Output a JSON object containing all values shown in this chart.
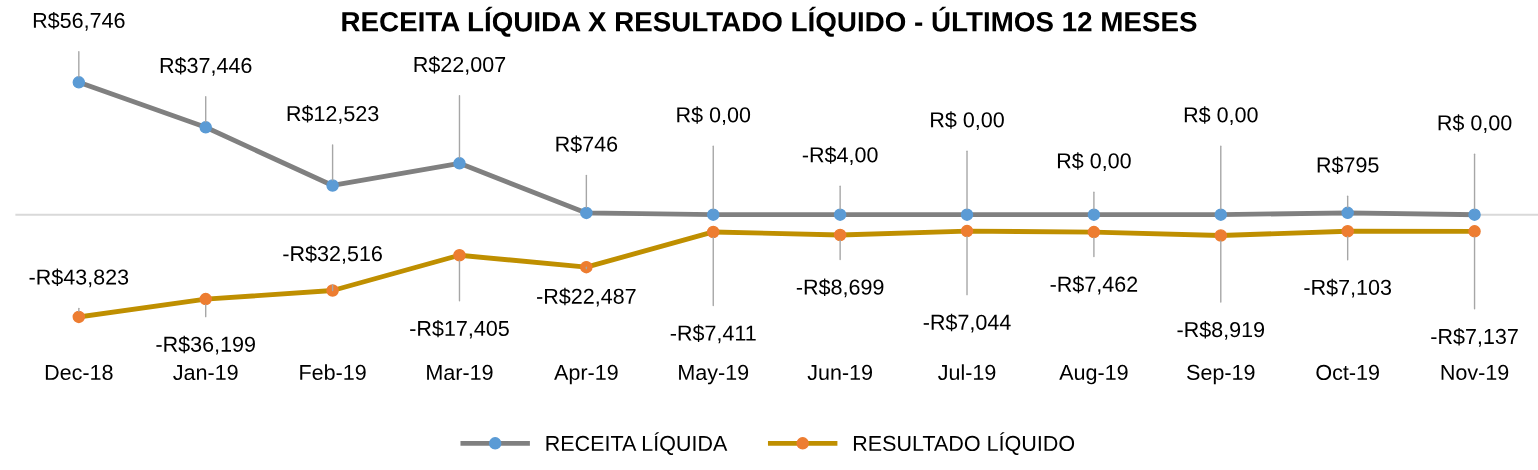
{
  "chart_data": {
    "type": "line",
    "title": "RECEITA LÍQUIDA X RESULTADO LÍQUIDO - ÚLTIMOS 12 MESES",
    "categories": [
      "Dec-18",
      "Jan-19",
      "Feb-19",
      "Mar-19",
      "Apr-19",
      "May-19",
      "Jun-19",
      "Jul-19",
      "Aug-19",
      "Sep-19",
      "Oct-19",
      "Nov-19"
    ],
    "series": [
      {
        "name": "RECEITA LÍQUIDA",
        "color": "#808080",
        "values": [
          56746,
          37446,
          12523,
          22007,
          746,
          0,
          -4,
          0,
          0,
          0,
          795,
          0
        ],
        "value_labels": [
          "R$56,746",
          "R$37,446",
          "R$12,523",
          "R$22,007",
          "R$746",
          "R$ 0,00",
          "-R$4,00",
          "R$ 0,00",
          "R$ 0,00",
          "R$ 0,00",
          "R$795",
          "R$ 0,00"
        ]
      },
      {
        "name": "RESULTADO LÍQUIDO",
        "color": "#bf8f00",
        "values": [
          -43823,
          -36199,
          -32516,
          -17405,
          -22487,
          -7411,
          -8699,
          -7044,
          -7462,
          -8919,
          -7103,
          -7137
        ],
        "value_labels": [
          "-R$43,823",
          "-R$36,199",
          "-R$32,516",
          "-R$17,405",
          "-R$22,487",
          "-R$7,411",
          "-R$8,699",
          "-R$7,044",
          "-R$7,462",
          "-R$8,919",
          "-R$7,103",
          "-R$7,137"
        ]
      }
    ],
    "marker": "circle",
    "grid": false,
    "legend": "bottom"
  }
}
